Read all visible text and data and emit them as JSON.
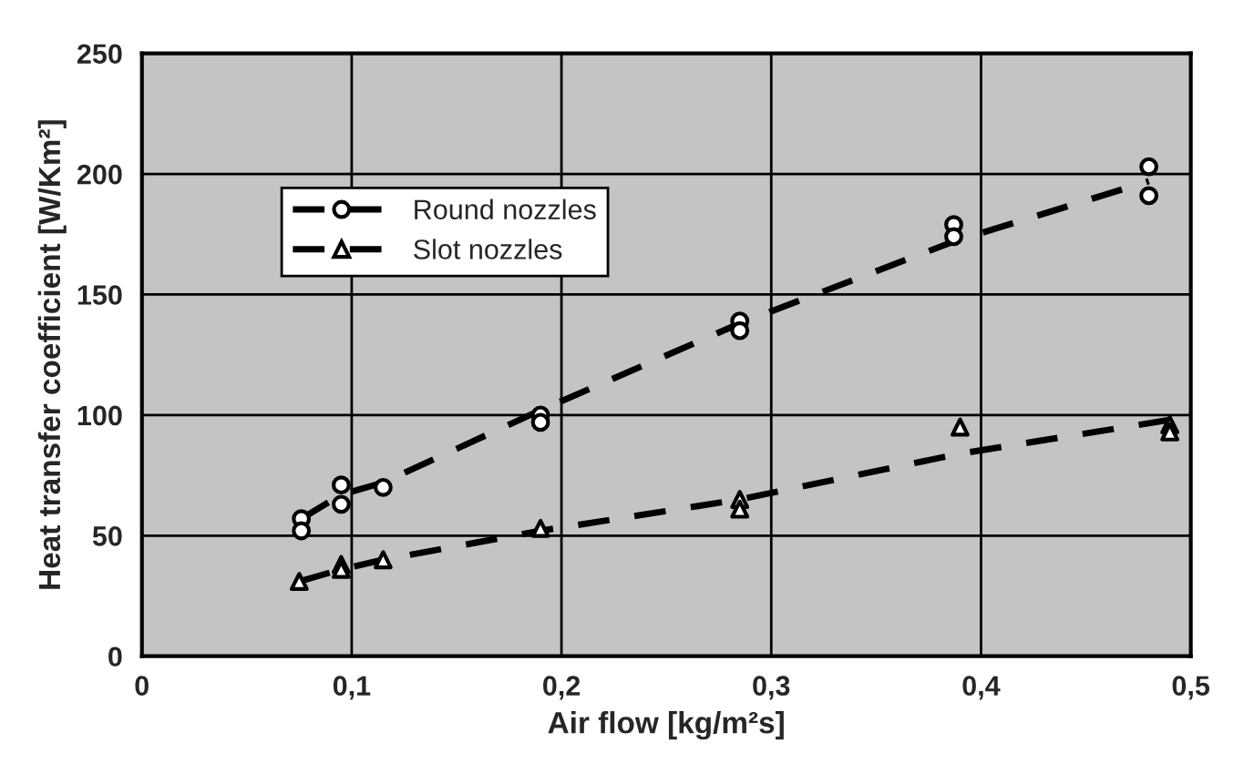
{
  "chart_data": {
    "type": "scatter",
    "xlabel": "Air flow [kg/m²s]",
    "ylabel": "Heat transfer coefficient [W/Km²]",
    "xlim": [
      0,
      0.5
    ],
    "xticks": [
      {
        "value": 0,
        "label": "0"
      },
      {
        "value": 0.1,
        "label": "0,1"
      },
      {
        "value": 0.2,
        "label": "0,2"
      },
      {
        "value": 0.3,
        "label": "0,3"
      },
      {
        "value": 0.4,
        "label": "0,4"
      },
      {
        "value": 0.5,
        "label": "0,5"
      }
    ],
    "ylim": [
      0,
      250
    ],
    "yticks": [
      0,
      50,
      100,
      150,
      200,
      250
    ],
    "grid": true,
    "legend": "top left",
    "series": [
      {
        "name": "Round nozzles",
        "marker": "circle",
        "color": "#000000",
        "x": [
          0.076,
          0.076,
          0.095,
          0.095,
          0.115,
          0.19,
          0.19,
          0.285,
          0.285,
          0.387,
          0.387,
          0.48,
          0.48
        ],
        "values": [
          57,
          52,
          71,
          63,
          70,
          100,
          97,
          139,
          135,
          179,
          174,
          203,
          191
        ]
      },
      {
        "type": "line",
        "line_style": "dashed",
        "color": "#000000",
        "x": [
          0.076,
          0.095,
          0.115,
          0.19,
          0.285,
          0.387,
          0.48
        ],
        "values": [
          57,
          67,
          72,
          102,
          138,
          172,
          197
        ]
      },
      {
        "name": "Slot nozzles",
        "marker": "triangle",
        "color": "#000000",
        "x": [
          0.075,
          0.095,
          0.095,
          0.115,
          0.19,
          0.285,
          0.285,
          0.39,
          0.49,
          0.49
        ],
        "values": [
          31,
          38,
          36,
          40,
          53,
          65,
          61,
          95,
          96,
          93
        ]
      },
      {
        "type": "line",
        "line_style": "dashed",
        "color": "#000000",
        "x": [
          0.075,
          0.095,
          0.115,
          0.19,
          0.285,
          0.39,
          0.49
        ],
        "values": [
          31,
          36,
          40,
          52,
          65,
          84,
          98
        ]
      }
    ]
  }
}
